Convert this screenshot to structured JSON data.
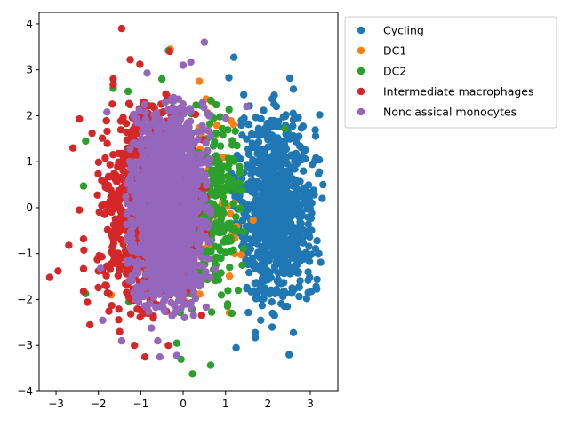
{
  "chart_data": {
    "type": "scatter",
    "title": "",
    "xlabel": "",
    "ylabel": "",
    "xlim": [
      -3.4,
      3.65
    ],
    "ylim": [
      -4.0,
      4.25
    ],
    "xticks": [
      -3,
      -2,
      -1,
      0,
      1,
      2,
      3
    ],
    "yticks": [
      -4,
      -3,
      -2,
      -1,
      0,
      1,
      2,
      3,
      4
    ],
    "grid": false,
    "legend_position": "outside-top-right",
    "series": [
      {
        "name": "Cycling",
        "color": "#1f77b4",
        "cluster": {
          "cx": 2.2,
          "cy": 0.0,
          "sx": 0.45,
          "sy": 1.0,
          "n": 900
        },
        "points": [
          {
            "x": 1.2,
            "y": 3.27
          },
          {
            "x": 1.08,
            "y": 2.83
          },
          {
            "x": 2.52,
            "y": 2.82
          },
          {
            "x": 2.6,
            "y": 2.58
          },
          {
            "x": 2.15,
            "y": 2.45
          },
          {
            "x": 1.43,
            "y": 2.46
          },
          {
            "x": 3.22,
            "y": 2.02
          },
          {
            "x": 3.3,
            "y": 0.5
          },
          {
            "x": 3.28,
            "y": 0.2
          },
          {
            "x": 3.2,
            "y": -1.0
          },
          {
            "x": 3.15,
            "y": -1.77
          },
          {
            "x": 2.95,
            "y": -1.4
          },
          {
            "x": 2.5,
            "y": -3.2
          },
          {
            "x": 1.25,
            "y": -3.05
          },
          {
            "x": 1.7,
            "y": -2.83
          },
          {
            "x": 1.7,
            "y": -2.72
          },
          {
            "x": 2.6,
            "y": -2.72
          },
          {
            "x": 1.83,
            "y": -2.45
          },
          {
            "x": 2.1,
            "y": -2.6
          },
          {
            "x": 2.95,
            "y": -1.85
          }
        ]
      },
      {
        "name": "DC1",
        "color": "#ff7f0e",
        "cluster": {
          "cx": 0.2,
          "cy": 0.0,
          "sx": 0.5,
          "sy": 1.0,
          "n": 120
        },
        "points": [
          {
            "x": -0.3,
            "y": 3.45
          },
          {
            "x": 0.38,
            "y": 2.75
          },
          {
            "x": 1.2,
            "y": 0.1
          },
          {
            "x": 1.65,
            "y": -0.27
          },
          {
            "x": 1.38,
            "y": -1.03
          },
          {
            "x": -1.7,
            "y": -1.9
          },
          {
            "x": -0.95,
            "y": -1.78
          },
          {
            "x": 0.05,
            "y": -2.05
          }
        ]
      },
      {
        "name": "DC2",
        "color": "#2ca02c",
        "cluster": {
          "cx": 0.7,
          "cy": 0.0,
          "sx": 0.35,
          "sy": 1.0,
          "n": 260
        },
        "points": [
          {
            "x": -0.35,
            "y": 3.42
          },
          {
            "x": -1.65,
            "y": 2.6
          },
          {
            "x": -1.3,
            "y": 2.53
          },
          {
            "x": -0.5,
            "y": 2.8
          },
          {
            "x": -2.3,
            "y": 1.45
          },
          {
            "x": -2.35,
            "y": 0.47
          },
          {
            "x": 2.4,
            "y": 1.72
          },
          {
            "x": 1.27,
            "y": 1.35
          },
          {
            "x": 1.3,
            "y": -1.8
          },
          {
            "x": 1.15,
            "y": -2.3
          },
          {
            "x": -0.05,
            "y": -3.3
          },
          {
            "x": 0.22,
            "y": -3.62
          },
          {
            "x": 0.65,
            "y": -3.43
          },
          {
            "x": -1.28,
            "y": -2.05
          },
          {
            "x": -0.15,
            "y": -2.95
          },
          {
            "x": -2.3,
            "y": -1.87
          }
        ]
      },
      {
        "name": "Intermediate macrophages",
        "color": "#d62728",
        "cluster": {
          "cx": -0.75,
          "cy": 0.0,
          "sx": 0.55,
          "sy": 1.05,
          "n": 1100
        },
        "points": [
          {
            "x": -1.45,
            "y": 3.9
          },
          {
            "x": -1.25,
            "y": 3.22
          },
          {
            "x": -1.02,
            "y": 3.12
          },
          {
            "x": -0.32,
            "y": 3.4
          },
          {
            "x": -1.65,
            "y": 2.8
          },
          {
            "x": -1.65,
            "y": 2.68
          },
          {
            "x": -2.6,
            "y": 1.3
          },
          {
            "x": -2.45,
            "y": 1.93
          },
          {
            "x": -2.15,
            "y": 1.62
          },
          {
            "x": -2.7,
            "y": -0.82
          },
          {
            "x": -2.35,
            "y": -0.68
          },
          {
            "x": -2.35,
            "y": -1.33
          },
          {
            "x": -2.95,
            "y": -1.38
          },
          {
            "x": -3.15,
            "y": -1.52
          },
          {
            "x": -2.35,
            "y": -1.82
          },
          {
            "x": -2.2,
            "y": -2.55
          },
          {
            "x": -1.5,
            "y": -2.7
          },
          {
            "x": -1.15,
            "y": -3.0
          },
          {
            "x": -0.9,
            "y": -3.25
          },
          {
            "x": -0.35,
            "y": -3.0
          },
          {
            "x": -2.45,
            "y": -0.05
          }
        ]
      },
      {
        "name": "Nonclassical monocytes",
        "color": "#9467bd",
        "cluster": {
          "cx": -0.35,
          "cy": 0.0,
          "sx": 0.42,
          "sy": 1.0,
          "n": 1600
        },
        "points": [
          {
            "x": 0.5,
            "y": 3.6
          },
          {
            "x": 0.18,
            "y": 3.17
          },
          {
            "x": 0.0,
            "y": 3.1
          },
          {
            "x": -0.85,
            "y": 2.93
          },
          {
            "x": -1.8,
            "y": 2.08
          },
          {
            "x": 1.5,
            "y": 2.2
          },
          {
            "x": 1.0,
            "y": 1.95
          },
          {
            "x": -1.95,
            "y": -1.32
          },
          {
            "x": -1.45,
            "y": -2.9
          },
          {
            "x": -0.55,
            "y": -3.25
          },
          {
            "x": -0.15,
            "y": -3.22
          },
          {
            "x": -0.75,
            "y": -2.62
          },
          {
            "x": -1.9,
            "y": -2.45
          },
          {
            "x": -0.6,
            "y": -2.9
          }
        ]
      }
    ]
  }
}
